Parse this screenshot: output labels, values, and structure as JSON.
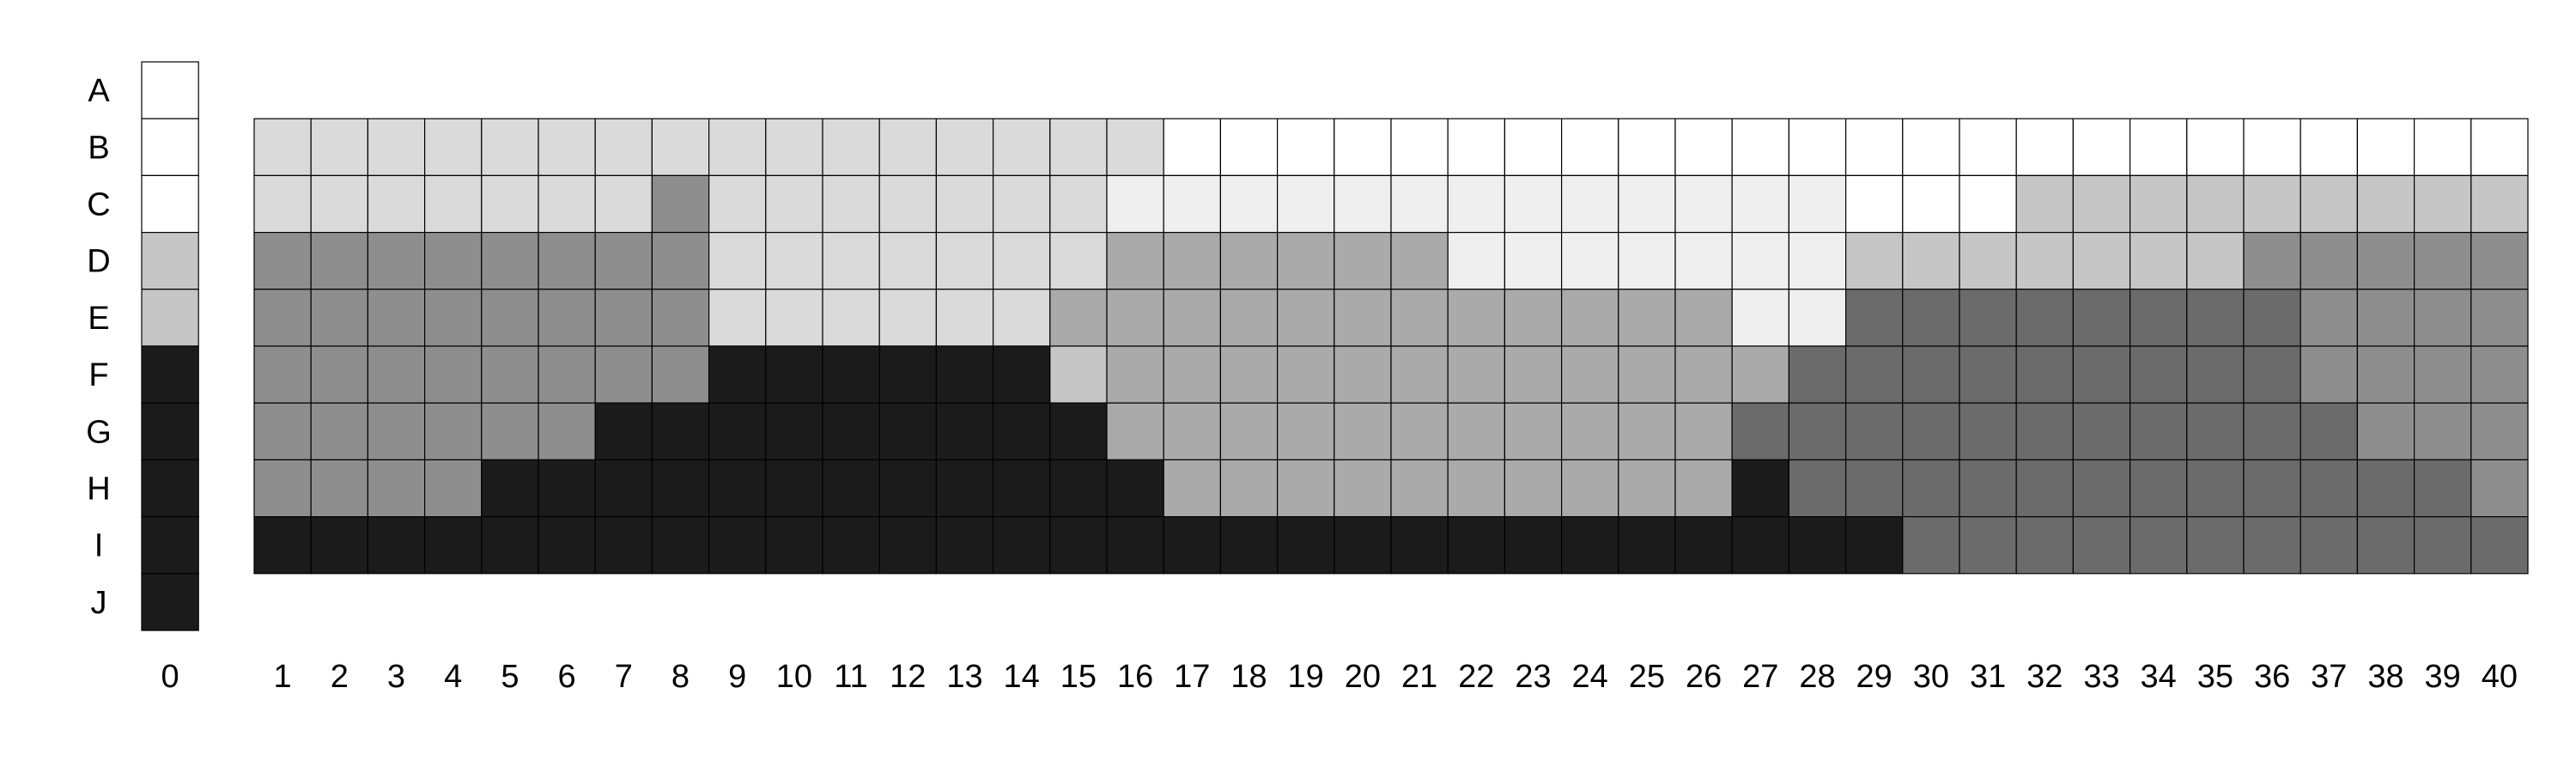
{
  "chart_data": {
    "type": "heatmap",
    "rows": [
      "A",
      "B",
      "C",
      "D",
      "E",
      "F",
      "G",
      "H",
      "I",
      "J"
    ],
    "reference_column": {
      "label": "0",
      "values": [
        0,
        0,
        0,
        3,
        3,
        8,
        8,
        8,
        8,
        8
      ]
    },
    "columns": [
      "1",
      "2",
      "3",
      "4",
      "5",
      "6",
      "7",
      "8",
      "9",
      "10",
      "11",
      "12",
      "13",
      "14",
      "15",
      "16",
      "17",
      "18",
      "19",
      "20",
      "21",
      "22",
      "23",
      "24",
      "25",
      "26",
      "27",
      "28",
      "29",
      "30",
      "31",
      "32",
      "33",
      "34",
      "35",
      "36",
      "37",
      "38",
      "39",
      "40"
    ],
    "grid_rows": [
      "B",
      "C",
      "D",
      "E",
      "F",
      "G",
      "H",
      "I"
    ],
    "grid": [
      "2222222222222222000000000000000000000000",
      "2222222522222221111111111111000333333333",
      "5555555522222224444441111111333333355555",
      "5555555522222244444444444411666666665555",
      "5555555588888834444444444446666666665555",
      "5555558888888884444444444466666666666555",
      "5555888888888888444444444486666666666665",
      "8888888888888888888888888888866666666666"
    ],
    "shade_levels": {
      "0": "#ffffff",
      "1": "#efefef",
      "2": "#dadada",
      "3": "#c6c6c6",
      "4": "#aaaaaa",
      "5": "#8e8e8e",
      "6": "#6b6b6b",
      "8": "#1b1b1b"
    },
    "grid_lines": true,
    "legend": "none"
  }
}
